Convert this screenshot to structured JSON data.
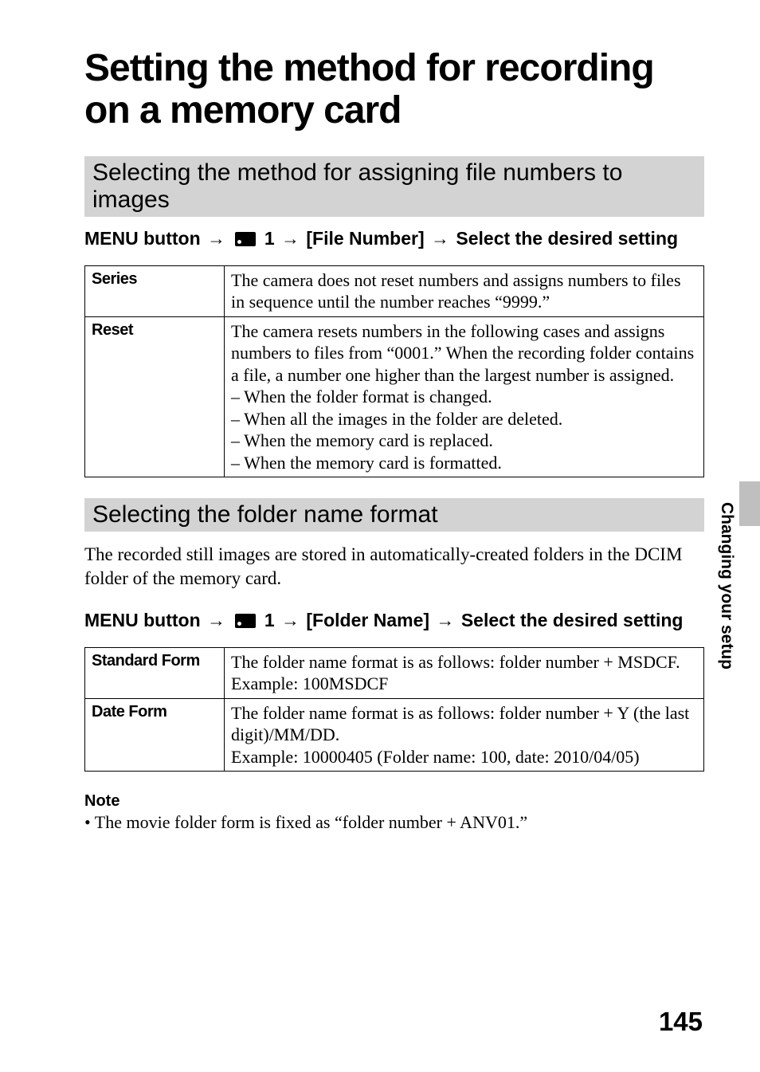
{
  "title": "Setting the method for recording on a memory card",
  "section1": {
    "heading": "Selecting the method for assigning file numbers to images",
    "menu_prefix": "MENU button",
    "menu_number": "1",
    "menu_item": "[File Number]",
    "menu_suffix": "Select the desired setting",
    "table": {
      "rows": [
        {
          "key": "Series",
          "val": "The camera does not reset numbers and assigns numbers to files in sequence until the number reaches “9999.”"
        },
        {
          "key": "Reset",
          "val": "The camera resets numbers in the following cases and assigns numbers to files from “0001.” When the recording folder contains a file, a number one higher than the largest number is assigned.\n– When the folder format is changed.\n– When all the images in the folder are deleted.\n– When the memory card is replaced.\n– When the memory card is formatted."
        }
      ]
    }
  },
  "section2": {
    "heading": "Selecting the folder name format",
    "intro": "The recorded still images are stored in automatically-created folders in the DCIM folder of the memory card.",
    "menu_prefix": "MENU button",
    "menu_number": "1",
    "menu_item": "[Folder Name]",
    "menu_suffix": "Select the desired setting",
    "table": {
      "rows": [
        {
          "key": "Standard Form",
          "val": "The folder name format is as follows: folder number + MSDCF.\nExample: 100MSDCF"
        },
        {
          "key": "Date Form",
          "val": "The folder name format is as follows: folder number + Y (the last digit)/MM/DD.\nExample: 10000405 (Folder name: 100, date: 2010/04/05)"
        }
      ]
    }
  },
  "note": {
    "heading": "Note",
    "text": "• The movie folder form is fixed as “folder number + ANV01.”"
  },
  "side_label": "Changing your setup",
  "page_number": "145",
  "arrow_glyph": "→"
}
